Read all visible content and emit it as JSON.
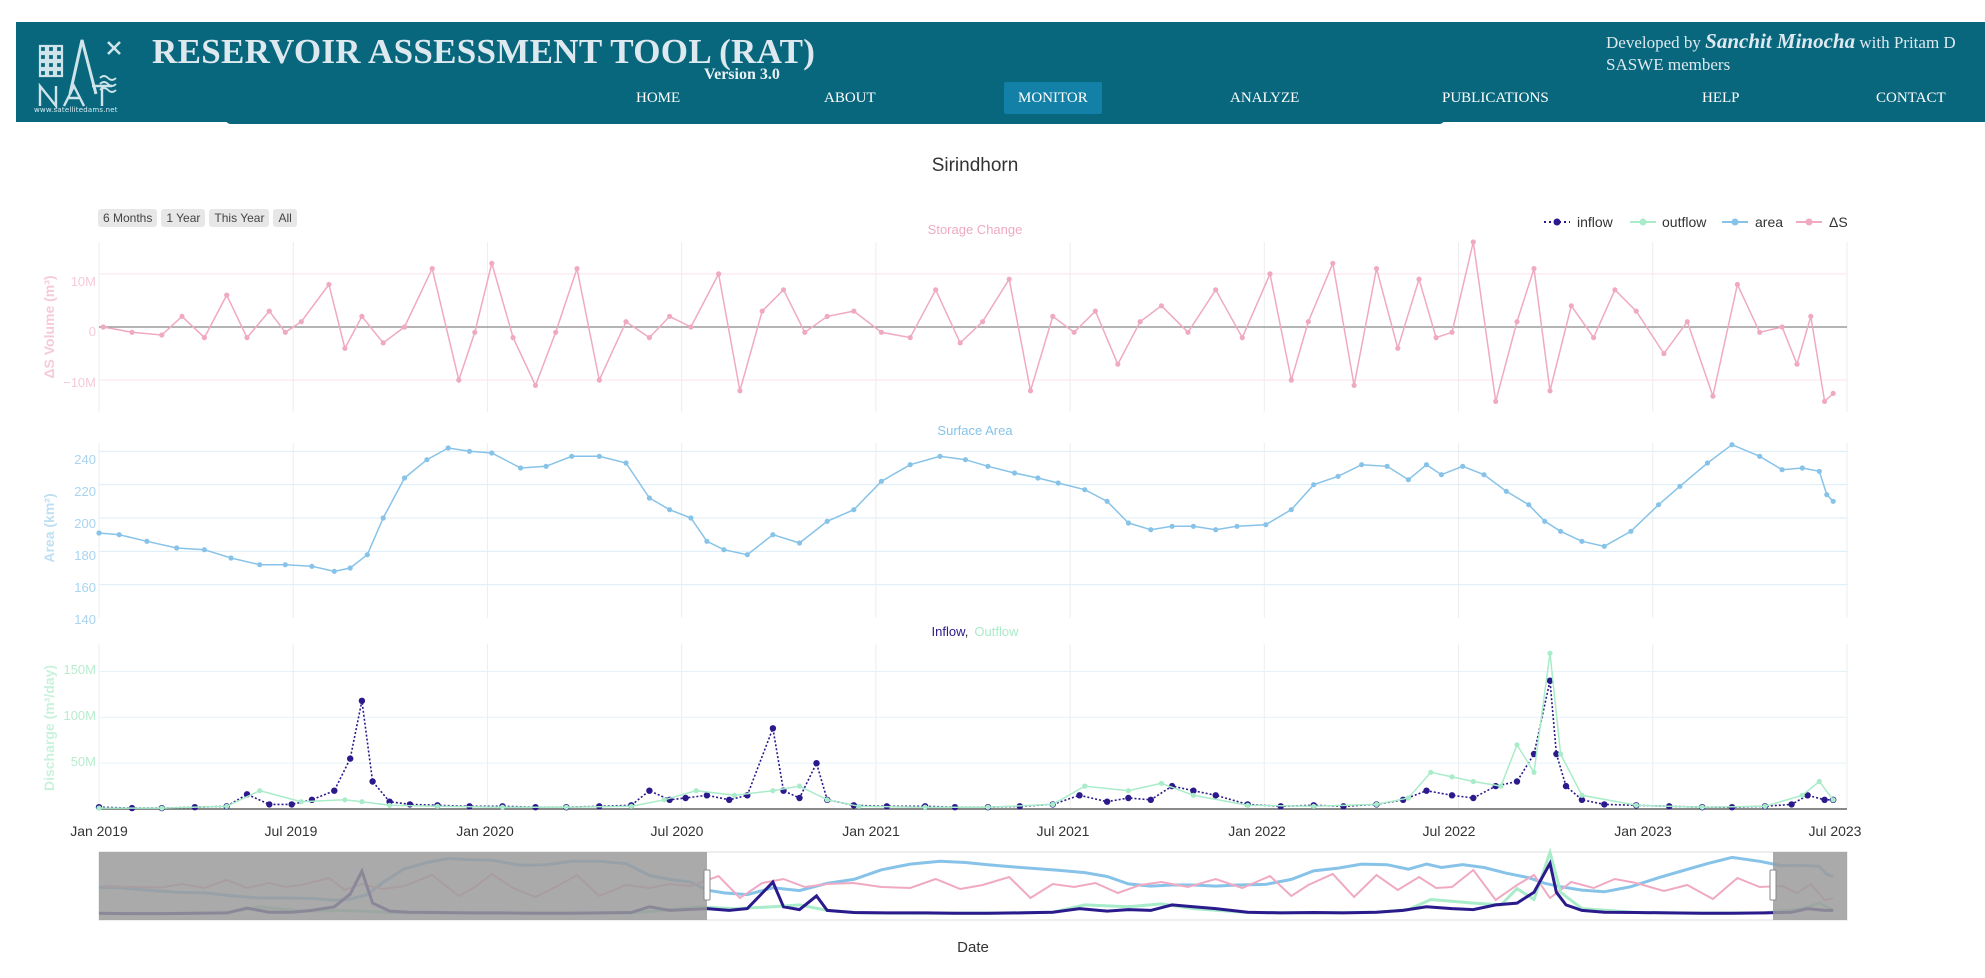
{
  "header": {
    "title": "RESERVOIR ASSESSMENT TOOL (RAT)",
    "version": "Version 3.0",
    "logo_url": "www.satellitedams.net",
    "credit_prefix": "Developed by",
    "credit_name": "Sanchit Minocha",
    "credit_suffix": "with Pritam D",
    "credit_line2": "SASWE members",
    "nav": [
      {
        "label": "HOME",
        "active": false
      },
      {
        "label": "ABOUT",
        "active": false
      },
      {
        "label": "MONITOR",
        "active": true
      },
      {
        "label": "ANALYZE",
        "active": false
      },
      {
        "label": "PUBLICATIONS",
        "active": false
      },
      {
        "label": "HELP",
        "active": false
      },
      {
        "label": "CONTACT",
        "active": false
      }
    ],
    "colors": {
      "bar": "#09677d",
      "active": "#1380a8"
    }
  },
  "range_buttons": [
    "6 Months",
    "1 Year",
    "This Year",
    "All"
  ],
  "chart_data": {
    "type": "line",
    "title": "Sirindhorn",
    "xlabel": "Date",
    "x_ticks": [
      "Jan 2019",
      "Jul 2019",
      "Jan 2020",
      "Jul 2020",
      "Jan 2021",
      "Jul 2021",
      "Jan 2022",
      "Jul 2022",
      "Jan 2023",
      "Jul 2023"
    ],
    "x_range": [
      "2019-01-01",
      "2023-07-01"
    ],
    "legend": {
      "placement": "top-right",
      "entries": [
        "inflow",
        "outflow",
        "area",
        "ΔS"
      ]
    },
    "colors": {
      "inflow": "#2a1a8c",
      "outflow": "#a9ecc9",
      "area": "#87c3e8",
      "ds": "#f0a9c3"
    },
    "panels": [
      {
        "subtitle": "Storage Change",
        "ylabel": "ΔS Volume (m³)",
        "y_ticks": [
          "10M",
          "0",
          "−10M"
        ],
        "ylim": [
          -16000000,
          16000000
        ],
        "series": [
          {
            "name": "ΔS",
            "x": [
              "2019-01-05",
              "2019-02-01",
              "2019-03-01",
              "2019-03-20",
              "2019-04-10",
              "2019-05-01",
              "2019-05-20",
              "2019-06-10",
              "2019-06-25",
              "2019-07-10",
              "2019-08-05",
              "2019-08-20",
              "2019-09-05",
              "2019-09-25",
              "2019-10-15",
              "2019-11-10",
              "2019-12-05",
              "2019-12-20",
              "2020-01-05",
              "2020-01-25",
              "2020-02-15",
              "2020-03-05",
              "2020-03-25",
              "2020-04-15",
              "2020-05-10",
              "2020-06-01",
              "2020-06-20",
              "2020-07-10",
              "2020-08-05",
              "2020-08-25",
              "2020-09-15",
              "2020-10-05",
              "2020-10-25",
              "2020-11-15",
              "2020-12-10",
              "2021-01-05",
              "2021-02-01",
              "2021-02-25",
              "2021-03-20",
              "2021-04-10",
              "2021-05-05",
              "2021-05-25",
              "2021-06-15",
              "2021-07-05",
              "2021-07-25",
              "2021-08-15",
              "2021-09-05",
              "2021-09-25",
              "2021-10-20",
              "2021-11-15",
              "2021-12-10",
              "2022-01-05",
              "2022-01-25",
              "2022-02-10",
              "2022-03-05",
              "2022-03-25",
              "2022-04-15",
              "2022-05-05",
              "2022-05-25",
              "2022-06-10",
              "2022-06-25",
              "2022-07-15",
              "2022-08-05",
              "2022-08-25",
              "2022-09-10",
              "2022-09-25",
              "2022-10-15",
              "2022-11-05",
              "2022-11-25",
              "2022-12-15",
              "2023-01-10",
              "2023-02-01",
              "2023-02-25",
              "2023-03-20",
              "2023-04-10",
              "2023-05-01",
              "2023-05-15",
              "2023-05-28",
              "2023-06-10",
              "2023-06-18"
            ],
            "values": [
              0,
              -1000000,
              -1500000,
              2000000,
              -2000000,
              6000000,
              -2000000,
              3000000,
              -1000000,
              1000000,
              8000000,
              -4000000,
              2000000,
              -3000000,
              0,
              11000000,
              -10000000,
              -1000000,
              12000000,
              -2000000,
              -11000000,
              -1000000,
              11000000,
              -10000000,
              1000000,
              -2000000,
              2000000,
              0,
              10000000,
              -12000000,
              3000000,
              7000000,
              -1000000,
              2000000,
              3000000,
              -1000000,
              -2000000,
              7000000,
              -3000000,
              1000000,
              9000000,
              -12000000,
              2000000,
              -1000000,
              3000000,
              -7000000,
              1000000,
              4000000,
              -1000000,
              7000000,
              -2000000,
              10000000,
              -10000000,
              1000000,
              12000000,
              -11000000,
              11000000,
              -4000000,
              9000000,
              -2000000,
              -1000000,
              16000000,
              -14000000,
              1000000,
              11000000,
              -12000000,
              4000000,
              -2000000,
              7000000,
              3000000,
              -5000000,
              1000000,
              -13000000,
              8000000,
              -1000000,
              0,
              -7000000,
              2000000,
              -14000000,
              -12500000
            ]
          }
        ]
      },
      {
        "subtitle": "Surface Area",
        "ylabel": "Area (km²)",
        "y_ticks": [
          "240",
          "220",
          "200",
          "180",
          "160",
          "140"
        ],
        "ylim": [
          140,
          245
        ],
        "series": [
          {
            "name": "area",
            "x": [
              "2019-01-01",
              "2019-01-20",
              "2019-02-15",
              "2019-03-15",
              "2019-04-10",
              "2019-05-05",
              "2019-06-01",
              "2019-06-25",
              "2019-07-20",
              "2019-08-10",
              "2019-08-25",
              "2019-09-10",
              "2019-09-25",
              "2019-10-15",
              "2019-11-05",
              "2019-11-25",
              "2019-12-15",
              "2020-01-05",
              "2020-02-01",
              "2020-02-25",
              "2020-03-20",
              "2020-04-15",
              "2020-05-10",
              "2020-06-01",
              "2020-06-20",
              "2020-07-10",
              "2020-07-25",
              "2020-08-10",
              "2020-09-01",
              "2020-09-25",
              "2020-10-20",
              "2020-11-15",
              "2020-12-10",
              "2021-01-05",
              "2021-02-01",
              "2021-03-01",
              "2021-03-25",
              "2021-04-15",
              "2021-05-10",
              "2021-06-01",
              "2021-06-20",
              "2021-07-15",
              "2021-08-05",
              "2021-08-25",
              "2021-09-15",
              "2021-10-05",
              "2021-10-25",
              "2021-11-15",
              "2021-12-05",
              "2022-01-01",
              "2022-01-25",
              "2022-02-15",
              "2022-03-10",
              "2022-04-01",
              "2022-04-25",
              "2022-05-15",
              "2022-06-01",
              "2022-06-15",
              "2022-07-05",
              "2022-07-25",
              "2022-08-15",
              "2022-09-05",
              "2022-09-20",
              "2022-10-05",
              "2022-10-25",
              "2022-11-15",
              "2022-12-10",
              "2023-01-05",
              "2023-01-25",
              "2023-02-20",
              "2023-03-15",
              "2023-04-10",
              "2023-05-01",
              "2023-05-20",
              "2023-06-05",
              "2023-06-12",
              "2023-06-18"
            ],
            "values": [
              191,
              190,
              186,
              182,
              181,
              176,
              172,
              172,
              171,
              168,
              170,
              178,
              200,
              224,
              235,
              242,
              240,
              239,
              230,
              231,
              237,
              237,
              233,
              212,
              205,
              200,
              186,
              181,
              178,
              190,
              185,
              198,
              205,
              222,
              232,
              237,
              235,
              231,
              227,
              224,
              221,
              217,
              210,
              197,
              193,
              195,
              195,
              193,
              195,
              196,
              205,
              220,
              225,
              232,
              231,
              223,
              232,
              226,
              231,
              226,
              216,
              208,
              198,
              192,
              186,
              183,
              192,
              208,
              219,
              233,
              244,
              237,
              229,
              230,
              228,
              214,
              210
            ]
          }
        ]
      },
      {
        "subtitle_parts": [
          "Inflow",
          ",",
          "Outflow"
        ],
        "ylabel": "Discharge (m³/day)",
        "y_ticks": [
          "150M",
          "100M",
          "50M"
        ],
        "ylim": [
          0,
          180000000
        ],
        "series": [
          {
            "name": "inflow",
            "x": [
              "2019-01-01",
              "2019-02-01",
              "2019-03-01",
              "2019-04-01",
              "2019-05-01",
              "2019-05-20",
              "2019-06-10",
              "2019-07-01",
              "2019-07-20",
              "2019-08-10",
              "2019-08-25",
              "2019-09-05",
              "2019-09-15",
              "2019-10-01",
              "2019-10-20",
              "2019-11-15",
              "2019-12-15",
              "2020-01-15",
              "2020-02-15",
              "2020-03-15",
              "2020-04-15",
              "2020-05-15",
              "2020-06-01",
              "2020-06-20",
              "2020-07-05",
              "2020-07-25",
              "2020-08-15",
              "2020-09-01",
              "2020-09-25",
              "2020-10-05",
              "2020-10-20",
              "2020-11-05",
              "2020-11-15",
              "2020-12-10",
              "2021-01-10",
              "2021-02-15",
              "2021-03-15",
              "2021-04-15",
              "2021-05-15",
              "2021-06-15",
              "2021-07-10",
              "2021-08-05",
              "2021-08-25",
              "2021-09-15",
              "2021-10-05",
              "2021-10-25",
              "2021-11-15",
              "2021-12-15",
              "2022-01-15",
              "2022-02-15",
              "2022-03-15",
              "2022-04-15",
              "2022-05-10",
              "2022-06-01",
              "2022-06-25",
              "2022-07-15",
              "2022-08-05",
              "2022-08-25",
              "2022-09-10",
              "2022-09-25",
              "2022-10-01",
              "2022-10-10",
              "2022-10-25",
              "2022-11-15",
              "2022-12-15",
              "2023-01-15",
              "2023-02-15",
              "2023-03-15",
              "2023-04-15",
              "2023-05-10",
              "2023-05-25",
              "2023-06-10",
              "2023-06-18"
            ],
            "values": [
              2000000,
              1000000,
              1000000,
              2000000,
              3000000,
              16000000,
              5000000,
              5000000,
              10000000,
              20000000,
              55000000,
              118000000,
              30000000,
              8000000,
              5000000,
              4000000,
              3000000,
              3000000,
              2000000,
              2000000,
              3000000,
              4000000,
              20000000,
              10000000,
              12000000,
              15000000,
              10000000,
              15000000,
              88000000,
              20000000,
              12000000,
              50000000,
              10000000,
              4000000,
              3000000,
              3000000,
              2000000,
              2000000,
              3000000,
              5000000,
              15000000,
              8000000,
              12000000,
              10000000,
              25000000,
              20000000,
              15000000,
              5000000,
              3000000,
              4000000,
              3000000,
              5000000,
              10000000,
              20000000,
              15000000,
              12000000,
              25000000,
              30000000,
              60000000,
              140000000,
              60000000,
              25000000,
              10000000,
              5000000,
              4000000,
              3000000,
              2000000,
              2000000,
              3000000,
              5000000,
              15000000,
              10000000,
              10000000
            ]
          },
          {
            "name": "outflow",
            "x": [
              "2019-01-01",
              "2019-03-01",
              "2019-05-01",
              "2019-06-01",
              "2019-07-10",
              "2019-08-20",
              "2019-09-05",
              "2019-10-01",
              "2019-11-15",
              "2020-01-15",
              "2020-03-15",
              "2020-05-15",
              "2020-06-15",
              "2020-07-15",
              "2020-08-20",
              "2020-09-25",
              "2020-10-20",
              "2020-11-15",
              "2020-12-15",
              "2021-02-15",
              "2021-04-15",
              "2021-06-15",
              "2021-07-15",
              "2021-08-25",
              "2021-09-25",
              "2021-10-25",
              "2021-12-15",
              "2022-02-15",
              "2022-04-15",
              "2022-05-15",
              "2022-06-05",
              "2022-06-25",
              "2022-07-15",
              "2022-08-10",
              "2022-08-25",
              "2022-09-10",
              "2022-09-25",
              "2022-10-05",
              "2022-10-25",
              "2022-12-15",
              "2023-02-15",
              "2023-04-15",
              "2023-05-20",
              "2023-06-05",
              "2023-06-18"
            ],
            "values": [
              1000000,
              1000000,
              3000000,
              20000000,
              8000000,
              10000000,
              8000000,
              4000000,
              3000000,
              2000000,
              2000000,
              3000000,
              10000000,
              20000000,
              15000000,
              20000000,
              25000000,
              10000000,
              3000000,
              2000000,
              2000000,
              5000000,
              25000000,
              20000000,
              28000000,
              15000000,
              4000000,
              3000000,
              5000000,
              12000000,
              40000000,
              35000000,
              30000000,
              25000000,
              70000000,
              40000000,
              170000000,
              60000000,
              15000000,
              4000000,
              2000000,
              3000000,
              15000000,
              30000000,
              10000000
            ]
          }
        ]
      }
    ]
  }
}
